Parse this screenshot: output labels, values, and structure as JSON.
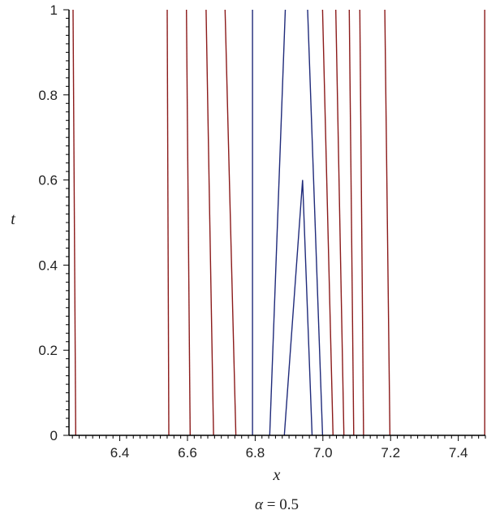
{
  "chart_data": {
    "type": "line",
    "title": "",
    "caption": {
      "symbol": "α",
      "rest": " = 0.5"
    },
    "xlabel": "x",
    "ylabel": "t",
    "xlim": [
      6.25,
      7.48
    ],
    "ylim": [
      0,
      1
    ],
    "xticks": [
      "6.4",
      "6.6",
      "6.8",
      "7.0",
      "7.2",
      "7.4"
    ],
    "xtick_values": [
      6.4,
      6.6,
      6.8,
      7.0,
      7.2,
      7.4
    ],
    "yticks": [
      "0",
      "0.2",
      "0.4",
      "0.6",
      "0.8",
      "1"
    ],
    "ytick_values": [
      0,
      0.2,
      0.4,
      0.6,
      0.8,
      1.0
    ],
    "grid": false,
    "colors": {
      "red_curve": "#8b1a1a",
      "blue_curve": "#1f2a7a",
      "axis": "#000000"
    },
    "series": [
      {
        "color": "red",
        "points": [
          [
            6.27,
            0
          ],
          [
            6.262,
            1
          ]
        ]
      },
      {
        "color": "red",
        "points": [
          [
            6.545,
            0
          ],
          [
            6.54,
            1
          ]
        ]
      },
      {
        "color": "red",
        "points": [
          [
            6.608,
            0
          ],
          [
            6.597,
            1
          ]
        ]
      },
      {
        "color": "red",
        "points": [
          [
            6.677,
            0
          ],
          [
            6.655,
            1
          ]
        ]
      },
      {
        "color": "red",
        "points": [
          [
            6.743,
            0
          ],
          [
            6.711,
            1
          ]
        ]
      },
      {
        "color": "blue",
        "points": [
          [
            6.792,
            0
          ],
          [
            6.792,
            1
          ]
        ]
      },
      {
        "color": "blue",
        "points": [
          [
            6.843,
            0
          ],
          [
            6.889,
            1
          ]
        ]
      },
      {
        "color": "blue",
        "points": [
          [
            6.886,
            0
          ],
          [
            6.94,
            0.6
          ],
          [
            6.968,
            0
          ]
        ]
      },
      {
        "color": "blue",
        "points": [
          [
            6.999,
            0
          ],
          [
            6.955,
            1
          ]
        ]
      },
      {
        "color": "red",
        "points": [
          [
            7.03,
            0
          ],
          [
            6.999,
            1
          ]
        ]
      },
      {
        "color": "red",
        "points": [
          [
            7.062,
            0
          ],
          [
            7.038,
            1
          ]
        ]
      },
      {
        "color": "red",
        "points": [
          [
            7.091,
            0
          ],
          [
            7.078,
            1
          ]
        ]
      },
      {
        "color": "red",
        "points": [
          [
            7.12,
            0
          ],
          [
            7.109,
            1
          ]
        ]
      },
      {
        "color": "red",
        "points": [
          [
            7.198,
            0
          ],
          [
            7.183,
            1
          ]
        ]
      },
      {
        "color": "red",
        "points": [
          [
            7.478,
            0
          ],
          [
            7.478,
            1
          ]
        ]
      }
    ]
  }
}
